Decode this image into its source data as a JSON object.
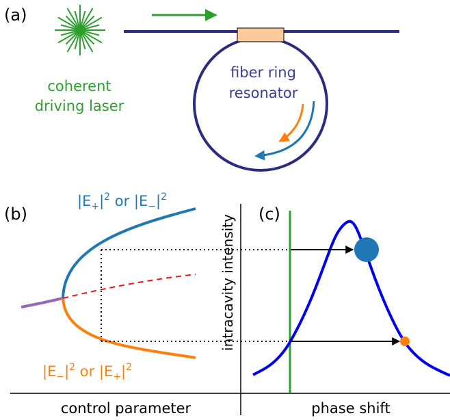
{
  "panel_a": {
    "label": "(a)",
    "laser_label_line1": "coherent",
    "laser_label_line2": "driving laser",
    "resonator_label_line1": "fiber ring",
    "resonator_label_line2": "resonator"
  },
  "panel_b": {
    "label": "(b)",
    "upper_branch_label": {
      "pre": "|E",
      "sub": "+",
      "mid": "|",
      "sup": "2",
      "or": " or |E",
      "sub2": "−",
      "mid2": "|",
      "sup2": "2"
    },
    "lower_branch_label": {
      "pre": "|E",
      "sub": "−",
      "mid": "|",
      "sup": "2",
      "or": " or |E",
      "sub2": "+",
      "mid2": "|",
      "sup2": "2"
    },
    "xlabel": "control parameter"
  },
  "panel_c": {
    "label": "(c)",
    "ylabel": "intracavity intensity",
    "xlabel": "phase shift"
  },
  "colors": {
    "laser_green": "#2ca02c",
    "fiber_navy": "#2b2b7f",
    "coupler_peach": "#fcc99b",
    "ccw_blue": "#1f77b4",
    "cw_orange": "#ff7f0e",
    "lorentzian_blue": "#0000ee",
    "unstable_red": "#e8141c",
    "symmetric_purple": "#9467bd",
    "arrow_black": "#000000"
  }
}
